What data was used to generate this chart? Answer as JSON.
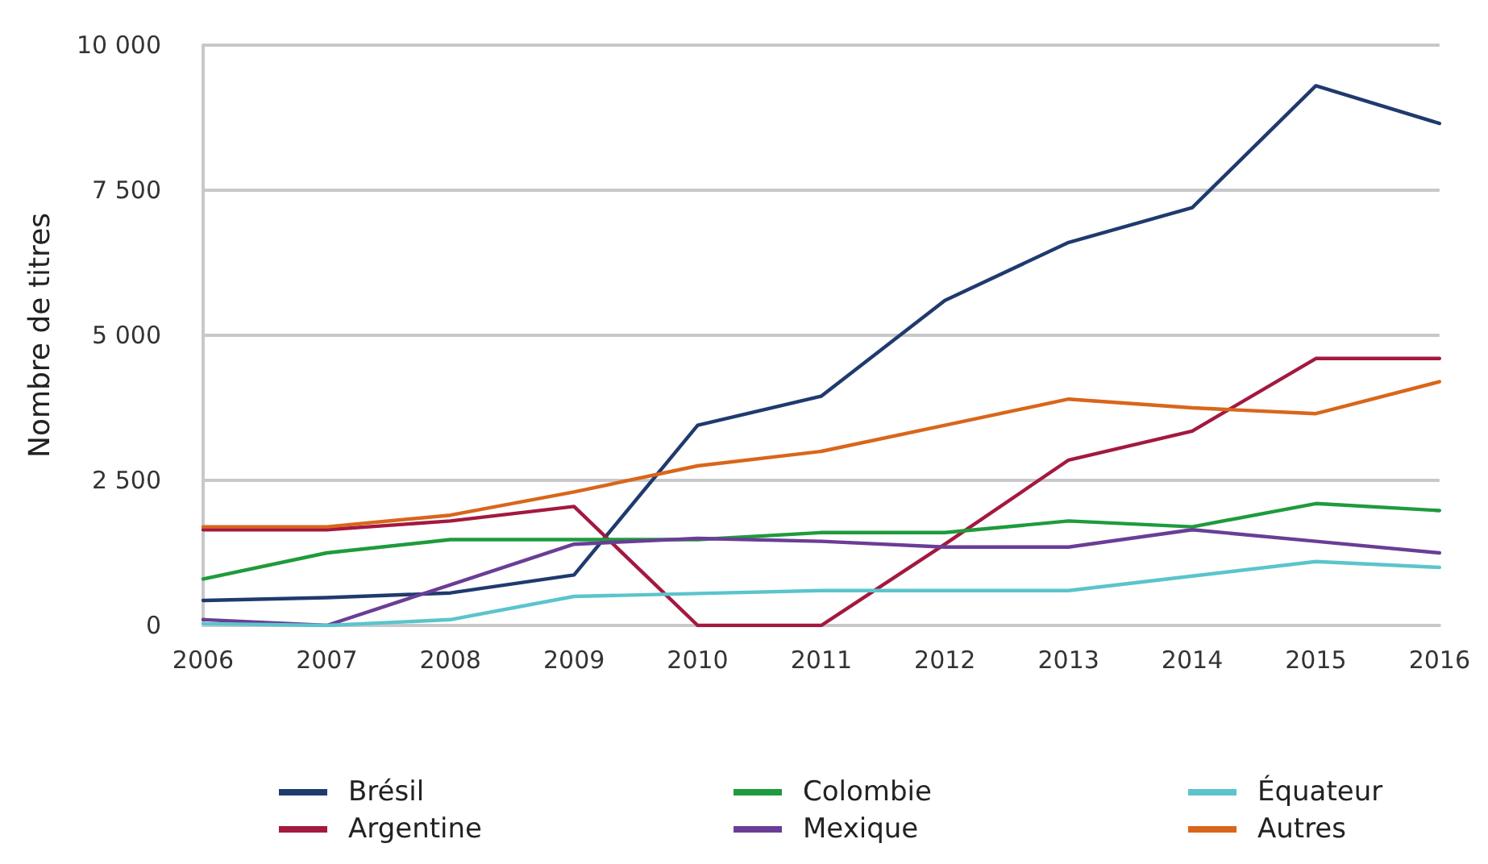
{
  "chart_data": {
    "type": "line",
    "ylabel": "Nombre de titres",
    "categories": [
      "2006",
      "2007",
      "2008",
      "2009",
      "2010",
      "2011",
      "2012",
      "2013",
      "2014",
      "2015",
      "2016"
    ],
    "series": [
      {
        "name": "Brésil",
        "color": "#1f3a6e",
        "values": [
          430,
          480,
          560,
          870,
          3450,
          3950,
          5600,
          6600,
          7200,
          9300,
          8650
        ]
      },
      {
        "name": "Argentine",
        "color": "#a3193f",
        "values": [
          1650,
          1650,
          1800,
          2050,
          0,
          0,
          1400,
          2850,
          3350,
          4600,
          4600
        ]
      },
      {
        "name": "Colombie",
        "color": "#1e9b3c",
        "values": [
          800,
          1250,
          1480,
          1480,
          1480,
          1600,
          1600,
          1800,
          1700,
          2100,
          1980
        ]
      },
      {
        "name": "Mexique",
        "color": "#6a3d96",
        "values": [
          100,
          0,
          700,
          1400,
          1500,
          1450,
          1350,
          1350,
          1650,
          1450,
          1250
        ]
      },
      {
        "name": "Équateur",
        "color": "#5bc4cc",
        "values": [
          30,
          0,
          100,
          500,
          550,
          600,
          600,
          600,
          850,
          1100,
          1000
        ]
      },
      {
        "name": "Autres",
        "color": "#d9661b",
        "values": [
          1700,
          1700,
          1900,
          2300,
          2750,
          3000,
          3450,
          3900,
          3750,
          3650,
          4200
        ]
      }
    ],
    "ylim": [
      0,
      10000
    ],
    "yticks": [
      {
        "value": 0,
        "label": "0"
      },
      {
        "value": 2500,
        "label": "2 500"
      },
      {
        "value": 5000,
        "label": "5 000"
      },
      {
        "value": 7500,
        "label": "7 500"
      },
      {
        "value": 10000,
        "label": "10 000"
      }
    ],
    "grid": "y",
    "legend": "bottom",
    "marker": "none",
    "line_style": "solid"
  }
}
